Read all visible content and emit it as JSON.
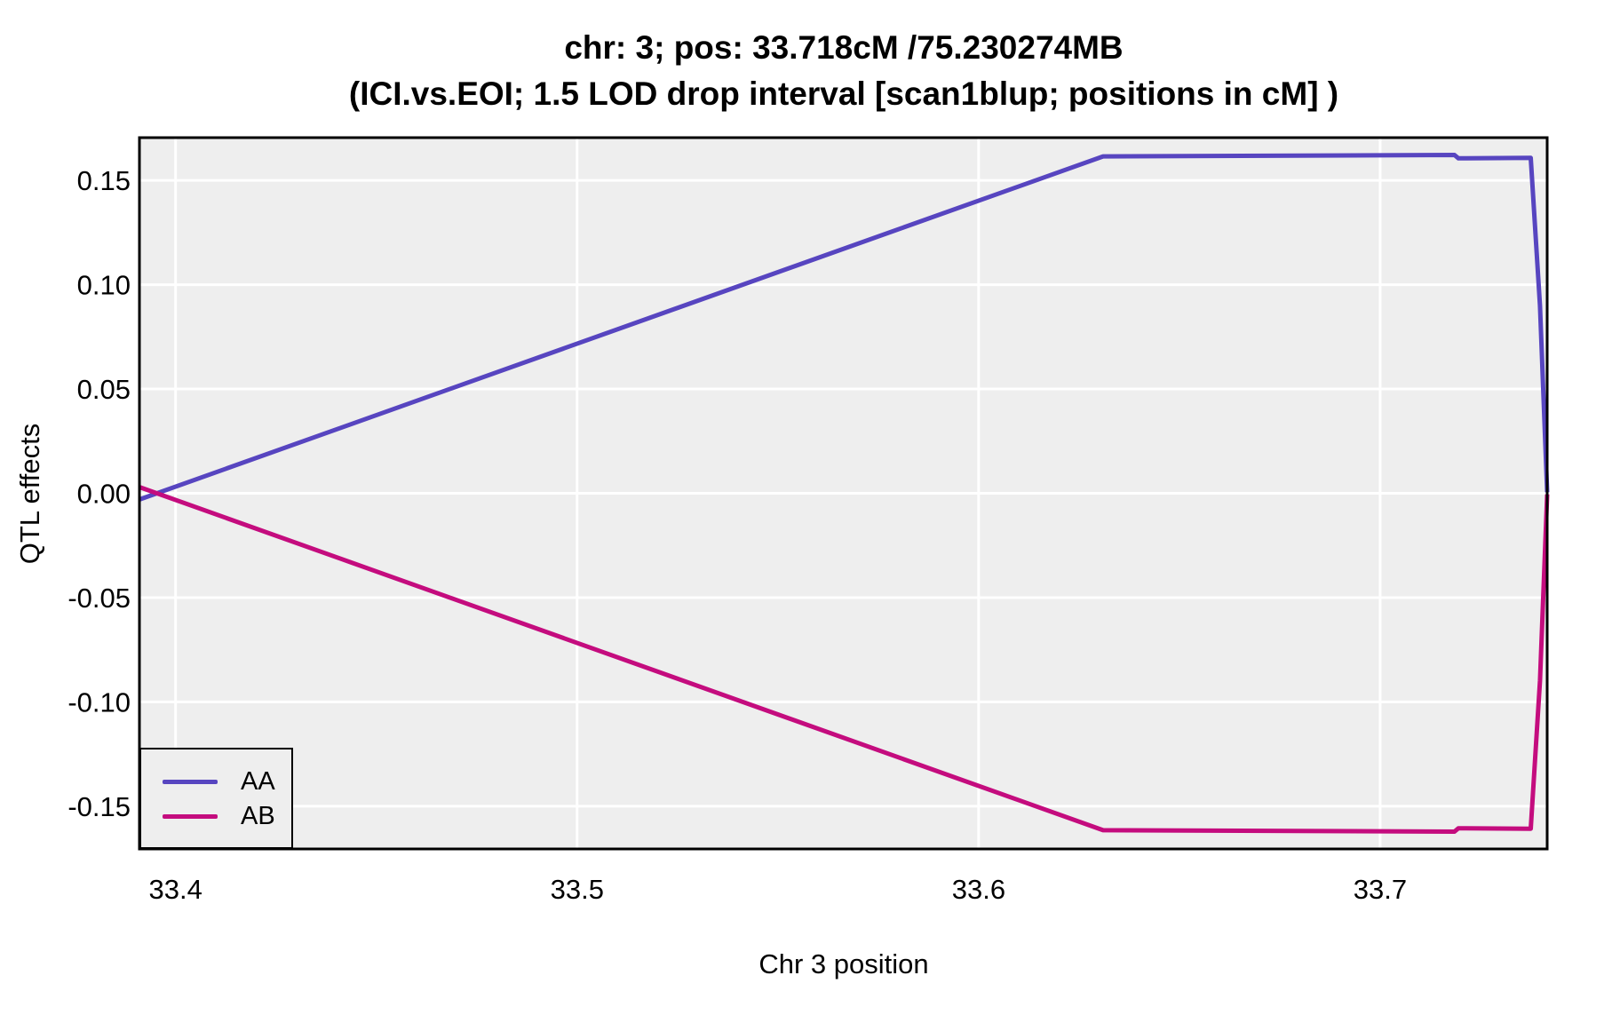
{
  "chart_data": {
    "type": "line",
    "title": "chr: 3; pos: 33.718cM /75.230274MB",
    "subtitle": "(ICI.vs.EOI; 1.5 LOD drop interval [scan1blup; positions in cM] )",
    "xlabel": "Chr 3 position",
    "ylabel": "QTL effects",
    "xlim": [
      33.391,
      33.7416
    ],
    "ylim": [
      -0.1705,
      0.1705
    ],
    "x_ticks": [
      33.4,
      33.5,
      33.6,
      33.7
    ],
    "x_tick_labels": [
      "33.4",
      "33.5",
      "33.6",
      "33.7"
    ],
    "y_ticks": [
      0.15,
      0.1,
      0.05,
      0.0,
      -0.05,
      -0.1,
      -0.15
    ],
    "y_tick_labels": [
      "0.15",
      "0.10",
      "0.05",
      "0.00",
      "-0.05",
      "-0.10",
      "-0.15"
    ],
    "grid": "major gridlines only, white on gray panel",
    "panel_bg": "#eeeeee",
    "grid_color": "#ffffff",
    "panel_border_color": "#000000",
    "legend_position": "bottom-left inside panel",
    "series": [
      {
        "name": "AA",
        "color": "#5745c0",
        "points": [
          [
            33.391,
            -0.003
          ],
          [
            33.631,
            0.1615
          ],
          [
            33.7185,
            0.1622
          ],
          [
            33.7195,
            0.1606
          ],
          [
            33.7375,
            0.1608
          ],
          [
            33.7398,
            0.09
          ],
          [
            33.7416,
            0.0005
          ]
        ]
      },
      {
        "name": "AB",
        "color": "#c40c7e",
        "points": [
          [
            33.391,
            0.003
          ],
          [
            33.631,
            -0.1615
          ],
          [
            33.7185,
            -0.1622
          ],
          [
            33.7195,
            -0.1606
          ],
          [
            33.7375,
            -0.1608
          ],
          [
            33.7398,
            -0.09
          ],
          [
            33.7416,
            -0.0005
          ]
        ]
      }
    ]
  }
}
